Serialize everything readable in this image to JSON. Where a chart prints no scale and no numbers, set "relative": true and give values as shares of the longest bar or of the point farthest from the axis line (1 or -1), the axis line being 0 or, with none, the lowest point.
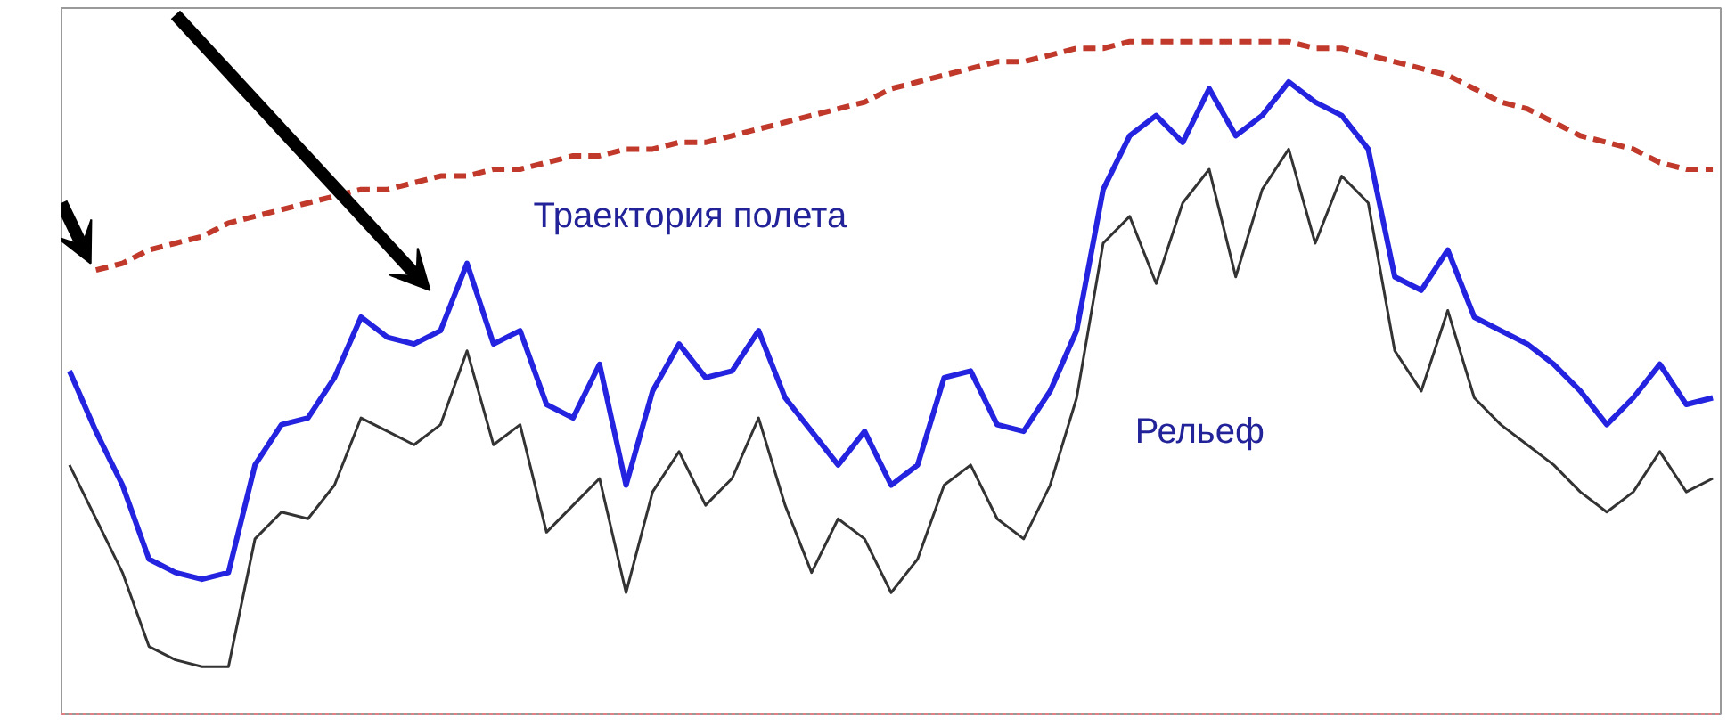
{
  "chart_data": {
    "type": "line",
    "relative": true,
    "grid": false,
    "marker": "none",
    "categories": [
      null,
      null,
      null,
      null,
      null,
      null,
      null,
      null,
      null,
      null,
      null,
      null,
      null,
      null,
      null,
      null,
      null,
      null,
      null,
      null,
      null,
      null,
      null,
      null,
      null,
      null,
      null,
      null,
      null,
      null,
      null,
      null,
      null,
      null,
      null,
      null,
      null,
      null,
      null,
      null,
      null,
      null,
      null,
      null,
      null,
      null,
      null,
      null,
      null,
      null,
      null,
      null,
      null,
      null,
      null,
      null,
      null,
      null,
      null,
      null,
      null,
      null,
      null
    ],
    "series": [
      {
        "color": "#c0392b",
        "line_style": "dashed",
        "values": [
          null,
          0.66,
          0.67,
          0.69,
          0.7,
          0.71,
          0.73,
          0.74,
          0.75,
          0.76,
          0.77,
          0.78,
          0.78,
          0.79,
          0.8,
          0.8,
          0.81,
          0.81,
          0.82,
          0.83,
          0.83,
          0.84,
          0.84,
          0.85,
          0.85,
          0.86,
          0.87,
          0.88,
          0.89,
          0.9,
          0.91,
          0.93,
          0.94,
          0.95,
          0.96,
          0.97,
          0.97,
          0.98,
          0.99,
          0.99,
          1.0,
          1.0,
          1.0,
          1.0,
          1.0,
          1.0,
          1.0,
          0.99,
          0.99,
          0.98,
          0.97,
          0.96,
          0.95,
          0.93,
          0.91,
          0.9,
          0.88,
          0.86,
          0.85,
          0.84,
          0.82,
          0.81,
          0.81
        ]
      },
      {
        "color": "#2323e0",
        "line_style": "solid",
        "values": [
          0.51,
          0.42,
          0.34,
          0.23,
          0.21,
          0.2,
          0.21,
          0.37,
          0.43,
          0.44,
          0.5,
          0.59,
          0.56,
          0.55,
          0.57,
          0.67,
          0.55,
          0.57,
          0.46,
          0.44,
          0.52,
          0.34,
          0.48,
          0.55,
          0.5,
          0.51,
          0.57,
          0.47,
          0.42,
          0.37,
          0.42,
          0.34,
          0.37,
          0.5,
          0.51,
          0.43,
          0.42,
          0.48,
          0.57,
          0.78,
          0.86,
          0.89,
          0.85,
          0.93,
          0.86,
          0.89,
          0.94,
          0.91,
          0.89,
          0.84,
          0.65,
          0.63,
          0.69,
          0.59,
          0.57,
          0.55,
          0.52,
          0.48,
          0.43,
          0.47,
          0.52,
          0.46,
          0.47
        ]
      },
      {
        "color": "#333333",
        "line_style": "solid",
        "values": [
          0.37,
          0.29,
          0.21,
          0.1,
          0.08,
          0.07,
          0.07,
          0.26,
          0.3,
          0.29,
          0.34,
          0.44,
          0.42,
          0.4,
          0.43,
          0.54,
          0.4,
          0.43,
          0.27,
          0.31,
          0.35,
          0.18,
          0.33,
          0.39,
          0.31,
          0.35,
          0.44,
          0.31,
          0.21,
          0.29,
          0.26,
          0.18,
          0.23,
          0.34,
          0.37,
          0.29,
          0.26,
          0.34,
          0.47,
          0.7,
          0.74,
          0.64,
          0.76,
          0.81,
          0.65,
          0.78,
          0.84,
          0.7,
          0.8,
          0.76,
          0.54,
          0.48,
          0.6,
          0.47,
          0.43,
          0.4,
          0.37,
          0.33,
          0.3,
          0.33,
          0.39,
          0.33,
          0.35
        ]
      }
    ],
    "annotations": [
      "Траектория полета",
      "Рельеф"
    ]
  }
}
